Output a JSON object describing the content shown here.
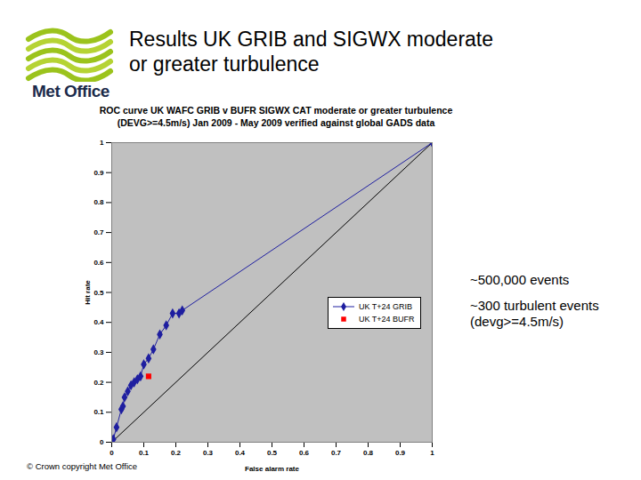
{
  "slide": {
    "title": "Results UK GRIB and SIGWX moderate or greater turbulence",
    "logo_text": "Met Office",
    "annotations": [
      "~500,000 events",
      "~300 turbulent events (devg>=4.5m/s)"
    ],
    "footer": "© Crown copyright   Met Office"
  },
  "chart_data": {
    "type": "line",
    "title": "ROC curve UK WAFC GRIB v BUFR SIGWX CAT moderate or greater turbulence\n(DEVG>=4.5m/s) Jan 2009 - May 2009 verified against global GADS data",
    "x_label": "False alarm rate",
    "y_label": "Hit rate",
    "xlim": [
      0,
      1
    ],
    "ylim": [
      0,
      1
    ],
    "xticks": [
      0,
      0.1,
      0.2,
      0.3,
      0.4,
      0.5,
      0.6,
      0.7,
      0.8,
      0.9,
      1
    ],
    "yticks": [
      0,
      0.1,
      0.2,
      0.3,
      0.4,
      0.5,
      0.6,
      0.7,
      0.8,
      0.9,
      1
    ],
    "grid": false,
    "legend": "right",
    "series": [
      {
        "color": "#000000",
        "type": "line",
        "marker": "none",
        "x": [
          0,
          1
        ],
        "values": [
          0,
          1
        ]
      },
      {
        "name": "UK T+24 GRIB",
        "color": "#1f1fa0",
        "type": "line",
        "marker": "diamond",
        "x": [
          0,
          0.005,
          0.015,
          0.03,
          0.035,
          0.04,
          0.05,
          0.06,
          0.07,
          0.08,
          0.09,
          0.1,
          0.115,
          0.13,
          0.15,
          0.17,
          0.19,
          0.21,
          0.22,
          1
        ],
        "values": [
          0,
          0.01,
          0.05,
          0.11,
          0.12,
          0.15,
          0.17,
          0.19,
          0.2,
          0.21,
          0.22,
          0.26,
          0.28,
          0.31,
          0.36,
          0.39,
          0.43,
          0.43,
          0.44,
          1
        ]
      },
      {
        "name": "UK T+24 BUFR",
        "color": "#ff0000",
        "type": "scatter",
        "marker": "square",
        "x": [
          0.115
        ],
        "values": [
          0.22
        ]
      }
    ]
  }
}
